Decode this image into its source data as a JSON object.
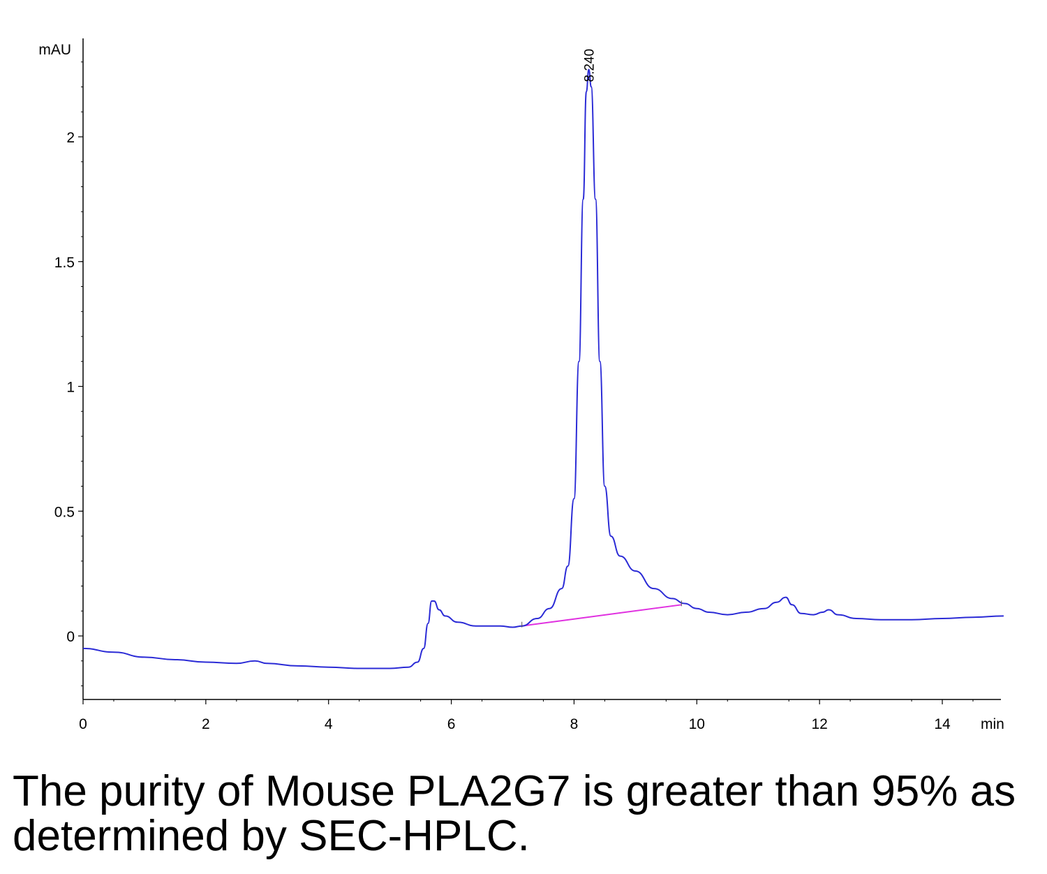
{
  "chart_data": {
    "type": "line",
    "title": "",
    "ylabel": "mAU",
    "xlabel": "min",
    "xlim": [
      0,
      15
    ],
    "ylim": [
      -0.25,
      2.4
    ],
    "x_ticks": [
      0,
      2,
      4,
      6,
      8,
      10,
      12,
      14
    ],
    "y_ticks": [
      0,
      0.5,
      1,
      1.5,
      2
    ],
    "y_tick_labels": [
      "0",
      "0.5",
      "1",
      "1.5",
      "2"
    ],
    "series": [
      {
        "color": "#2b2bd6",
        "points": [
          [
            0,
            -0.05
          ],
          [
            0.5,
            -0.065
          ],
          [
            1.0,
            -0.085
          ],
          [
            1.5,
            -0.095
          ],
          [
            2.0,
            -0.105
          ],
          [
            2.5,
            -0.11
          ],
          [
            2.8,
            -0.1
          ],
          [
            3.0,
            -0.11
          ],
          [
            3.5,
            -0.12
          ],
          [
            4.0,
            -0.125
          ],
          [
            4.5,
            -0.13
          ],
          [
            5.0,
            -0.13
          ],
          [
            5.3,
            -0.125
          ],
          [
            5.45,
            -0.105
          ],
          [
            5.55,
            -0.05
          ],
          [
            5.62,
            0.05
          ],
          [
            5.68,
            0.14
          ],
          [
            5.72,
            0.14
          ],
          [
            5.8,
            0.105
          ],
          [
            5.9,
            0.08
          ],
          [
            6.1,
            0.055
          ],
          [
            6.4,
            0.04
          ],
          [
            6.8,
            0.04
          ],
          [
            7.0,
            0.035
          ],
          [
            7.15,
            0.04
          ],
          [
            7.4,
            0.07
          ],
          [
            7.6,
            0.11
          ],
          [
            7.8,
            0.19
          ],
          [
            7.9,
            0.28
          ],
          [
            8.0,
            0.55
          ],
          [
            8.08,
            1.1
          ],
          [
            8.15,
            1.75
          ],
          [
            8.2,
            2.18
          ],
          [
            8.24,
            2.27
          ],
          [
            8.28,
            2.2
          ],
          [
            8.35,
            1.75
          ],
          [
            8.42,
            1.1
          ],
          [
            8.5,
            0.6
          ],
          [
            8.6,
            0.4
          ],
          [
            8.75,
            0.32
          ],
          [
            9.0,
            0.26
          ],
          [
            9.3,
            0.19
          ],
          [
            9.6,
            0.15
          ],
          [
            9.8,
            0.13
          ],
          [
            10.0,
            0.11
          ],
          [
            10.2,
            0.095
          ],
          [
            10.5,
            0.085
          ],
          [
            10.8,
            0.095
          ],
          [
            11.1,
            0.11
          ],
          [
            11.3,
            0.135
          ],
          [
            11.45,
            0.155
          ],
          [
            11.55,
            0.125
          ],
          [
            11.7,
            0.09
          ],
          [
            11.9,
            0.085
          ],
          [
            12.05,
            0.095
          ],
          [
            12.15,
            0.105
          ],
          [
            12.3,
            0.085
          ],
          [
            12.6,
            0.07
          ],
          [
            13.0,
            0.065
          ],
          [
            13.5,
            0.065
          ],
          [
            14.0,
            0.07
          ],
          [
            14.5,
            0.075
          ],
          [
            15.0,
            0.08
          ]
        ]
      }
    ],
    "baseline": {
      "color": "#e030e0",
      "from": [
        7.15,
        0.04
      ],
      "to": [
        9.75,
        0.125
      ]
    },
    "annotations": [
      {
        "text": "8.240",
        "x": 8.24,
        "y": 2.27
      }
    ]
  },
  "caption": "The purity of Mouse PLA2G7 is greater than 95% as determined by SEC-HPLC."
}
